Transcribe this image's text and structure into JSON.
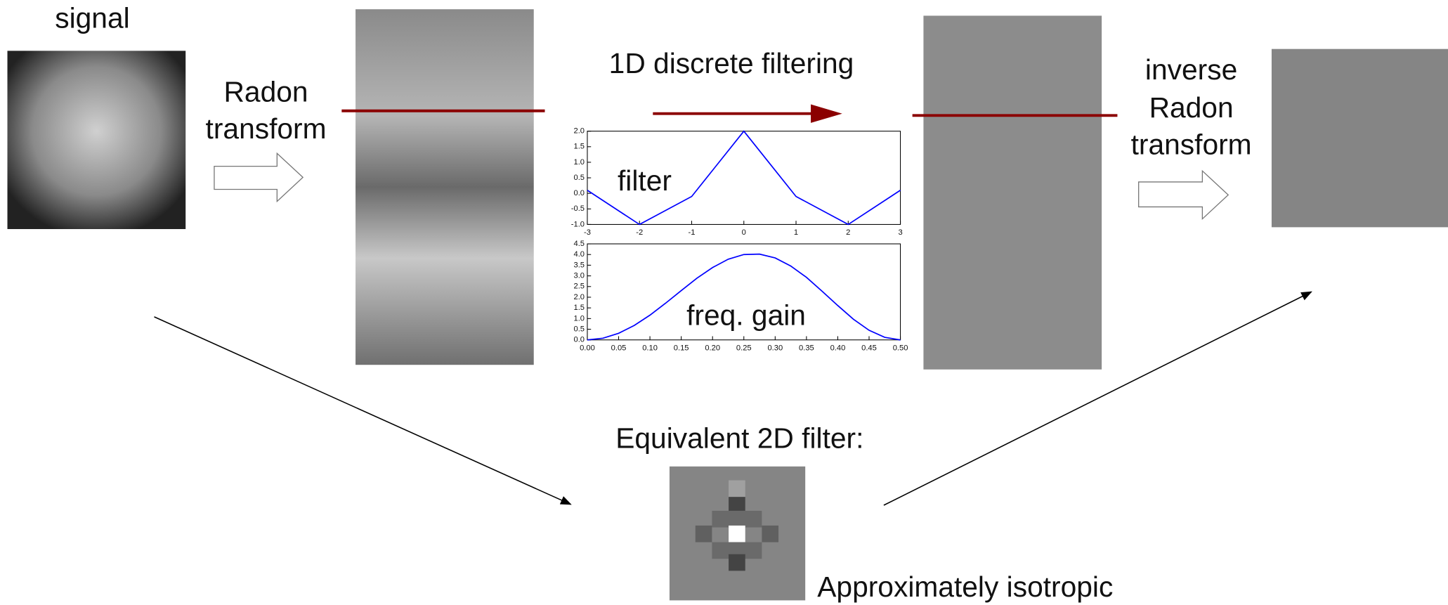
{
  "labels": {
    "signal": "signal",
    "radon_1": "Radon",
    "radon_2": "transform",
    "filtering": "1D discrete filtering",
    "inverse_1": "inverse",
    "inverse_2": "Radon",
    "inverse_3": "transform",
    "equivalent": "Equivalent 2D filter:",
    "isotropic": "Approximately isotropic"
  },
  "chart_data": [
    {
      "type": "line",
      "annotation": "filter",
      "color": "#0000ff",
      "x": [
        -3,
        -2,
        -1,
        0,
        1,
        2,
        3
      ],
      "values": [
        0.1,
        -1,
        -0.1,
        2,
        -0.1,
        -1,
        0.1
      ],
      "xlim": [
        -3,
        3
      ],
      "ylim": [
        -1,
        2
      ],
      "xticks": [
        -3,
        -2,
        -1,
        0,
        1,
        2,
        3
      ],
      "yticks": [
        {
          "value": 2,
          "label": "2.0"
        },
        1.5,
        {
          "value": 1,
          "label": "1.0"
        },
        0.5,
        {
          "value": 0,
          "label": "0.0"
        },
        -0.5,
        {
          "value": -1,
          "label": "-1.0"
        }
      ]
    },
    {
      "type": "line",
      "annotation": "freq. gain",
      "color": "#0000ff",
      "x": [
        0,
        0.025,
        0.05,
        0.075,
        0.1,
        0.125,
        0.15,
        0.175,
        0.2,
        0.225,
        0.25,
        0.275,
        0.3,
        0.325,
        0.35,
        0.375,
        0.4,
        0.425,
        0.45,
        0.475,
        0.5
      ],
      "values": [
        0,
        0.08,
        0.31,
        0.68,
        1.16,
        1.72,
        2.31,
        2.89,
        3.39,
        3.78,
        4,
        4.02,
        3.84,
        3.46,
        2.93,
        2.28,
        1.61,
        0.97,
        0.45,
        0.12,
        0
      ],
      "xlim": [
        0,
        0.5
      ],
      "ylim": [
        0,
        4.5
      ],
      "xticks": [
        {
          "value": 0,
          "label": "0.00"
        },
        {
          "value": 0.05,
          "label": "0.05"
        },
        {
          "value": 0.1,
          "label": "0.10"
        },
        {
          "value": 0.15,
          "label": "0.15"
        },
        {
          "value": 0.2,
          "label": "0.20"
        },
        {
          "value": 0.25,
          "label": "0.25"
        },
        {
          "value": 0.3,
          "label": "0.30"
        },
        {
          "value": 0.35,
          "label": "0.35"
        },
        {
          "value": 0.4,
          "label": "0.40"
        },
        {
          "value": 0.45,
          "label": "0.45"
        },
        {
          "value": 0.5,
          "label": "0.50"
        }
      ],
      "yticks": [
        {
          "value": 4.5,
          "label": "4.5"
        },
        {
          "value": 4,
          "label": "4.0"
        },
        3.5,
        {
          "value": 3,
          "label": "3.0"
        },
        2.5,
        {
          "value": 2,
          "label": "2.0"
        },
        1.5,
        {
          "value": 1,
          "label": "1.0"
        },
        0.5,
        {
          "value": 0,
          "label": "0.0"
        }
      ]
    }
  ]
}
